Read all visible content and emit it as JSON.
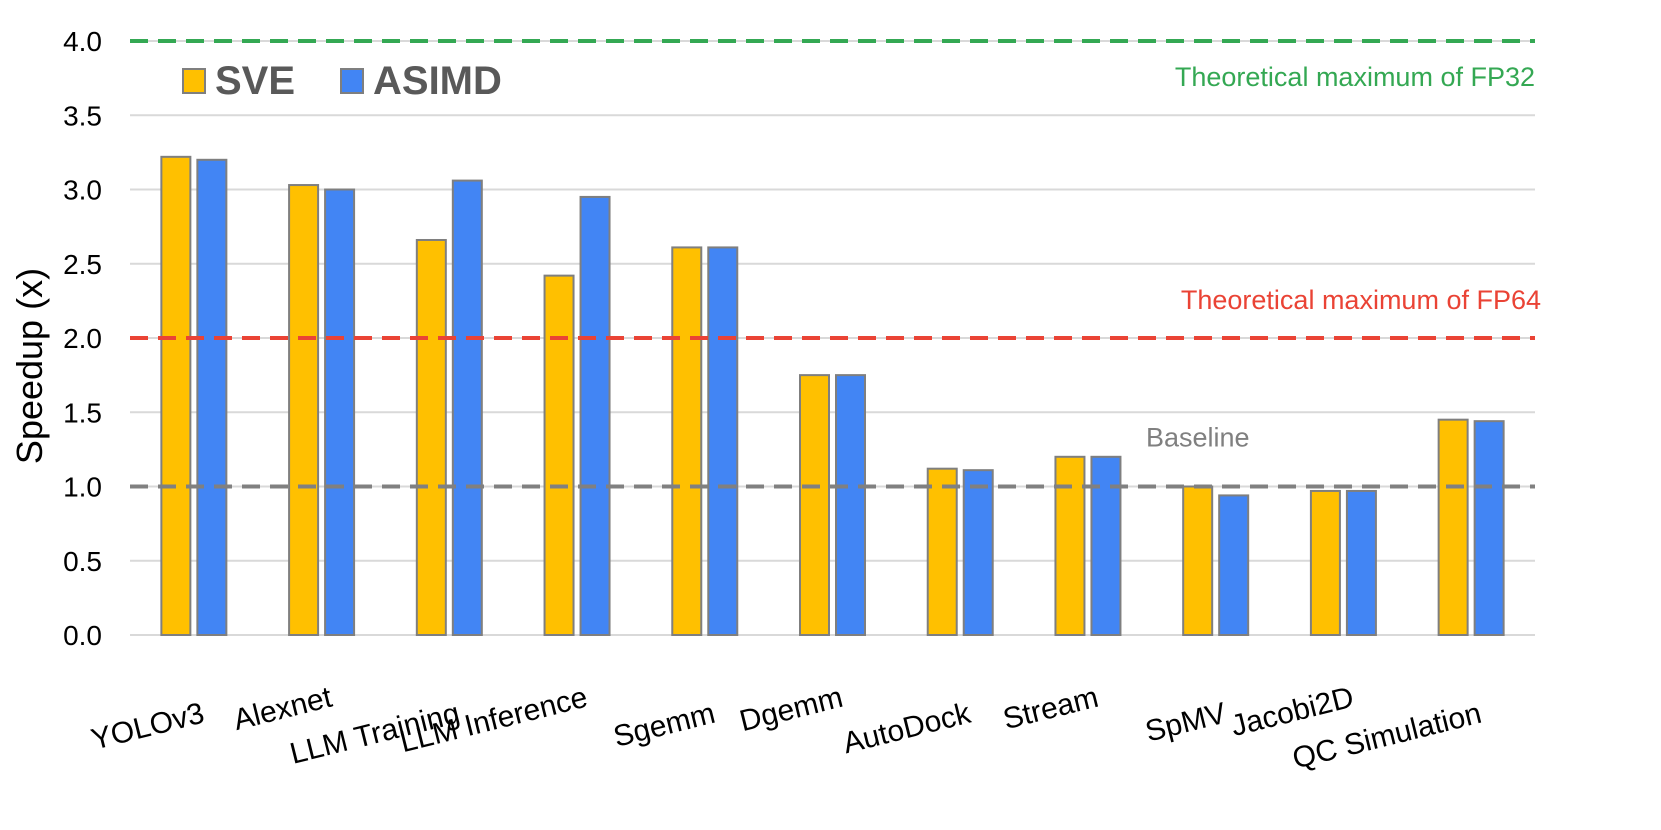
{
  "chart_data": {
    "type": "bar",
    "ylabel": "Speedup (x)",
    "xlabel": "",
    "ylim": [
      0,
      4.0
    ],
    "yticks": [
      "0.0",
      "0.5",
      "1.0",
      "1.5",
      "2.0",
      "2.5",
      "3.0",
      "3.5",
      "4.0"
    ],
    "grid": true,
    "legend_position": "top-left",
    "categories": [
      "YOLOv3",
      "Alexnet",
      "LLM Training",
      "LLM Inference",
      "Sgemm",
      "Dgemm",
      "AutoDock",
      "Stream",
      "SpMV",
      "Jacobi2D",
      "QC Simulation"
    ],
    "series": [
      {
        "name": "SVE",
        "color": "#FFC000",
        "values": [
          3.22,
          3.03,
          2.66,
          2.42,
          2.61,
          1.75,
          1.12,
          1.2,
          1.0,
          0.97,
          1.45
        ]
      },
      {
        "name": "ASIMD",
        "color": "#4285F4",
        "values": [
          3.2,
          3.0,
          3.06,
          2.95,
          2.61,
          1.75,
          1.11,
          1.2,
          0.94,
          0.97,
          1.44
        ]
      }
    ],
    "reference_lines": [
      {
        "label": "Theoretical maximum of FP32",
        "y": 4.0,
        "color": "#34A853"
      },
      {
        "label": "Theoretical maximum of FP64",
        "y": 2.0,
        "color": "#EA4335"
      },
      {
        "label": "Baseline",
        "y": 1.0,
        "color": "#808080"
      }
    ]
  }
}
